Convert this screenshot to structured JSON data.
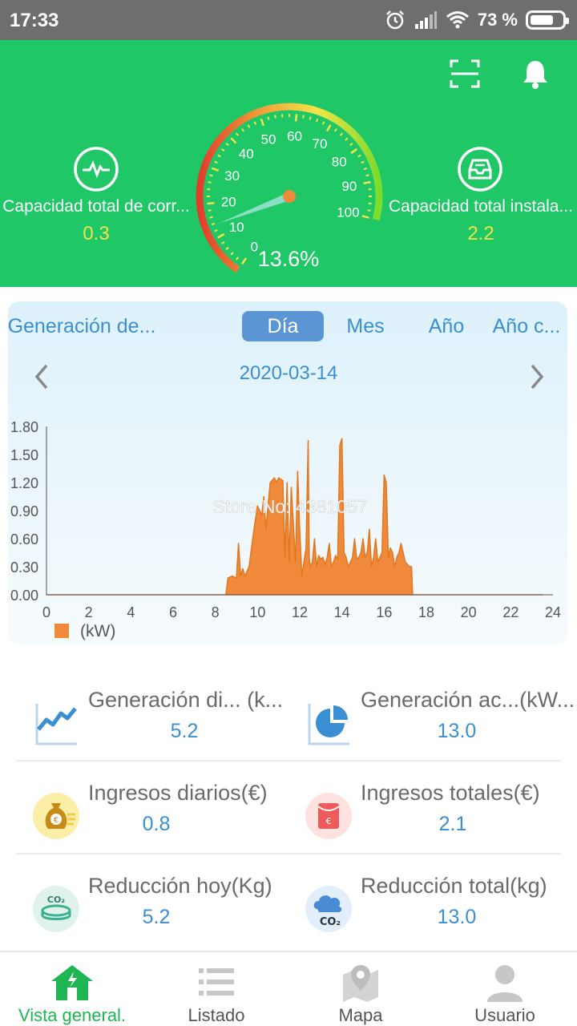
{
  "status_bar": {
    "time": "17:33",
    "battery_percent": "73 %",
    "battery_level": 0.73
  },
  "header": {
    "left_title": "Capacidad total de corr...",
    "left_value": "0.3",
    "right_title": "Capacidad total instala...",
    "right_value": "2.2",
    "gauge_percent_label": "13.6%",
    "gauge_value": 13.6,
    "gauge_ticks": [
      "0",
      "10",
      "20",
      "30",
      "40",
      "50",
      "60",
      "70",
      "80",
      "90",
      "100"
    ],
    "colors": {
      "green": "#1fc766",
      "value_yellow": "#f4e04d",
      "needle_orange": "#f08a3a"
    }
  },
  "chart_card": {
    "tabs": [
      "Generación de...",
      "Día",
      "Mes",
      "Año",
      "Año c..."
    ],
    "active_tab": "Día",
    "date": "2020-03-14",
    "watermark": "Store No: 4381057"
  },
  "chart_data": {
    "type": "area",
    "xlabel": "",
    "ylabel": "",
    "legend": [
      "(kW)"
    ],
    "legend_position": "bottom-left",
    "xlim": [
      0,
      24
    ],
    "ylim": [
      0,
      1.8
    ],
    "xticks": [
      "0",
      "2",
      "4",
      "6",
      "8",
      "10",
      "12",
      "14",
      "16",
      "18",
      "20",
      "22",
      "24"
    ],
    "yticks": [
      "0.00",
      "0.30",
      "0.60",
      "0.90",
      "1.20",
      "1.50",
      "1.80"
    ],
    "color": "#f08a3a",
    "series": [
      {
        "name": "(kW)",
        "x": [
          0,
          8.5,
          8.6,
          8.8,
          9.0,
          9.1,
          9.2,
          9.3,
          9.4,
          9.6,
          9.8,
          10.0,
          10.2,
          10.3,
          10.4,
          10.6,
          10.8,
          10.9,
          11.0,
          11.2,
          11.3,
          11.4,
          11.5,
          11.6,
          11.8,
          11.9,
          12.0,
          12.1,
          12.3,
          12.4,
          12.45,
          12.5,
          12.6,
          12.7,
          12.8,
          12.9,
          13.0,
          13.1,
          13.2,
          13.3,
          13.4,
          13.5,
          13.6,
          13.7,
          13.8,
          13.9,
          14.0,
          14.1,
          14.2,
          14.3,
          14.4,
          14.5,
          14.6,
          14.7,
          14.8,
          14.9,
          15.0,
          15.1,
          15.2,
          15.3,
          15.4,
          15.5,
          15.6,
          15.7,
          15.8,
          15.9,
          16.0,
          16.1,
          16.2,
          16.3,
          16.4,
          16.5,
          16.6,
          16.7,
          16.8,
          17.0,
          17.2,
          17.3,
          17.35,
          17.4,
          23.5
        ],
        "y": [
          0.0,
          0.0,
          0.18,
          0.2,
          0.18,
          0.55,
          0.2,
          0.28,
          0.2,
          0.3,
          0.65,
          0.95,
          0.85,
          1.05,
          0.7,
          1.2,
          1.25,
          1.2,
          1.25,
          1.22,
          0.4,
          1.2,
          0.35,
          1.15,
          0.35,
          1.32,
          0.7,
          0.2,
          0.5,
          1.65,
          0.4,
          0.3,
          0.35,
          0.6,
          0.3,
          0.42,
          0.38,
          0.4,
          0.32,
          0.4,
          0.55,
          0.3,
          0.35,
          0.42,
          0.38,
          1.6,
          1.67,
          0.45,
          0.4,
          0.3,
          0.35,
          0.4,
          0.6,
          0.38,
          0.4,
          0.45,
          0.6,
          0.4,
          0.45,
          0.7,
          0.3,
          0.4,
          0.6,
          0.35,
          0.4,
          0.45,
          1.28,
          1.2,
          0.4,
          0.5,
          0.45,
          0.3,
          0.4,
          0.45,
          0.55,
          0.35,
          0.3,
          0.3,
          0.0,
          0.0,
          0.0
        ]
      }
    ]
  },
  "stats": [
    {
      "label": "Generación di...  (k...",
      "value": "5.2",
      "icon": "line-chart-icon"
    },
    {
      "label": "Generación ac...(kW...",
      "value": "13.0",
      "icon": "pie-chart-icon"
    },
    {
      "label": "Ingresos diarios(€)",
      "value": "0.8",
      "icon": "money-bag-icon"
    },
    {
      "label": "Ingresos totales(€)",
      "value": "2.1",
      "icon": "red-envelope-icon"
    },
    {
      "label": "Reducción hoy(Kg)",
      "value": "5.2",
      "icon": "co2-cup-icon"
    },
    {
      "label": "Reducción total(kg)",
      "value": "13.0",
      "icon": "co2-cloud-icon"
    }
  ],
  "bottom_nav": [
    {
      "label": "Vista general.",
      "icon": "home-icon",
      "active": true
    },
    {
      "label": "Listado",
      "icon": "list-icon",
      "active": false
    },
    {
      "label": "Mapa",
      "icon": "map-pin-icon",
      "active": false
    },
    {
      "label": "Usuario",
      "icon": "user-icon",
      "active": false
    }
  ]
}
